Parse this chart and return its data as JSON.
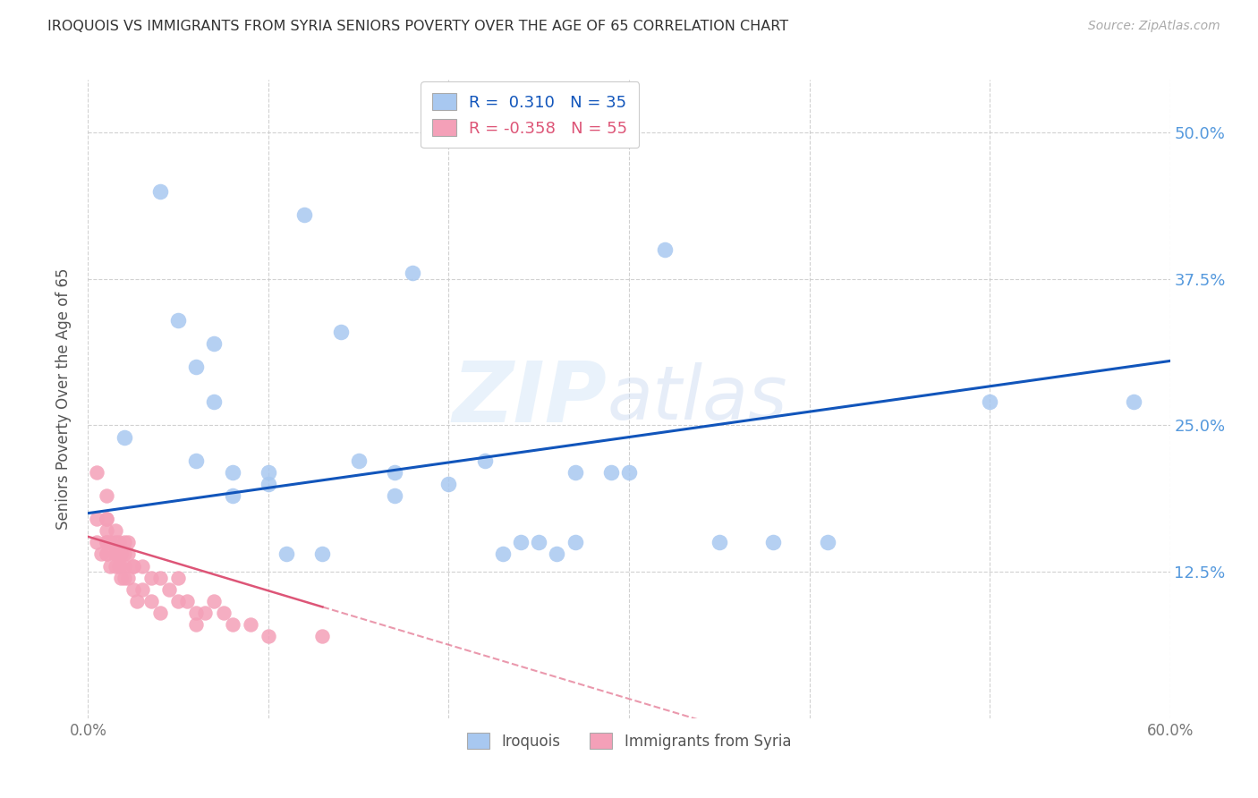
{
  "title": "IROQUOIS VS IMMIGRANTS FROM SYRIA SENIORS POVERTY OVER THE AGE OF 65 CORRELATION CHART",
  "source": "Source: ZipAtlas.com",
  "ylabel": "Seniors Poverty Over the Age of 65",
  "xlim": [
    0,
    0.6
  ],
  "ylim": [
    0,
    0.545
  ],
  "yticks": [
    0.125,
    0.25,
    0.375,
    0.5
  ],
  "ytick_labels": [
    "12.5%",
    "25.0%",
    "37.5%",
    "50.0%"
  ],
  "xticks": [
    0.0,
    0.1,
    0.2,
    0.3,
    0.4,
    0.5,
    0.6
  ],
  "xtick_labels": [
    "0.0%",
    "",
    "",
    "",
    "",
    "",
    "60.0%"
  ],
  "blue_R": 0.31,
  "blue_N": 35,
  "pink_R": -0.358,
  "pink_N": 55,
  "blue_color": "#A8C8F0",
  "blue_edge_color": "#7AAAD0",
  "pink_color": "#F4A0B8",
  "pink_edge_color": "#D07090",
  "blue_line_color": "#1155BB",
  "pink_line_color": "#DD5577",
  "grid_color": "#CCCCCC",
  "watermark": "ZIPatlas",
  "blue_x": [
    0.02,
    0.04,
    0.05,
    0.06,
    0.06,
    0.07,
    0.07,
    0.08,
    0.08,
    0.1,
    0.1,
    0.11,
    0.12,
    0.13,
    0.14,
    0.15,
    0.17,
    0.17,
    0.18,
    0.2,
    0.22,
    0.23,
    0.24,
    0.25,
    0.26,
    0.27,
    0.27,
    0.29,
    0.3,
    0.32,
    0.35,
    0.38,
    0.41,
    0.5,
    0.58
  ],
  "blue_y": [
    0.24,
    0.45,
    0.34,
    0.3,
    0.22,
    0.32,
    0.27,
    0.21,
    0.19,
    0.21,
    0.2,
    0.14,
    0.43,
    0.14,
    0.33,
    0.22,
    0.21,
    0.19,
    0.38,
    0.2,
    0.22,
    0.14,
    0.15,
    0.15,
    0.14,
    0.21,
    0.15,
    0.21,
    0.21,
    0.4,
    0.15,
    0.15,
    0.15,
    0.27,
    0.27
  ],
  "pink_x": [
    0.005,
    0.005,
    0.005,
    0.007,
    0.01,
    0.01,
    0.01,
    0.01,
    0.01,
    0.01,
    0.01,
    0.01,
    0.012,
    0.012,
    0.015,
    0.015,
    0.015,
    0.015,
    0.015,
    0.017,
    0.017,
    0.017,
    0.018,
    0.018,
    0.018,
    0.02,
    0.02,
    0.02,
    0.02,
    0.022,
    0.022,
    0.022,
    0.025,
    0.025,
    0.025,
    0.027,
    0.03,
    0.03,
    0.035,
    0.035,
    0.04,
    0.04,
    0.045,
    0.05,
    0.05,
    0.055,
    0.06,
    0.06,
    0.065,
    0.07,
    0.075,
    0.08,
    0.09,
    0.1,
    0.13
  ],
  "pink_y": [
    0.21,
    0.17,
    0.15,
    0.14,
    0.19,
    0.17,
    0.17,
    0.16,
    0.15,
    0.15,
    0.14,
    0.14,
    0.15,
    0.13,
    0.16,
    0.15,
    0.14,
    0.14,
    0.13,
    0.15,
    0.14,
    0.13,
    0.14,
    0.13,
    0.12,
    0.15,
    0.14,
    0.13,
    0.12,
    0.15,
    0.14,
    0.12,
    0.13,
    0.13,
    0.11,
    0.1,
    0.13,
    0.11,
    0.12,
    0.1,
    0.12,
    0.09,
    0.11,
    0.12,
    0.1,
    0.1,
    0.09,
    0.08,
    0.09,
    0.1,
    0.09,
    0.08,
    0.08,
    0.07,
    0.07
  ],
  "blue_line_x0": 0.0,
  "blue_line_x1": 0.6,
  "blue_line_y0": 0.175,
  "blue_line_y1": 0.305,
  "pink_line_solid_x0": 0.0,
  "pink_line_solid_x1": 0.13,
  "pink_line_y0": 0.155,
  "pink_line_y1": 0.095,
  "pink_line_dash_x0": 0.13,
  "pink_line_dash_x1": 0.6
}
